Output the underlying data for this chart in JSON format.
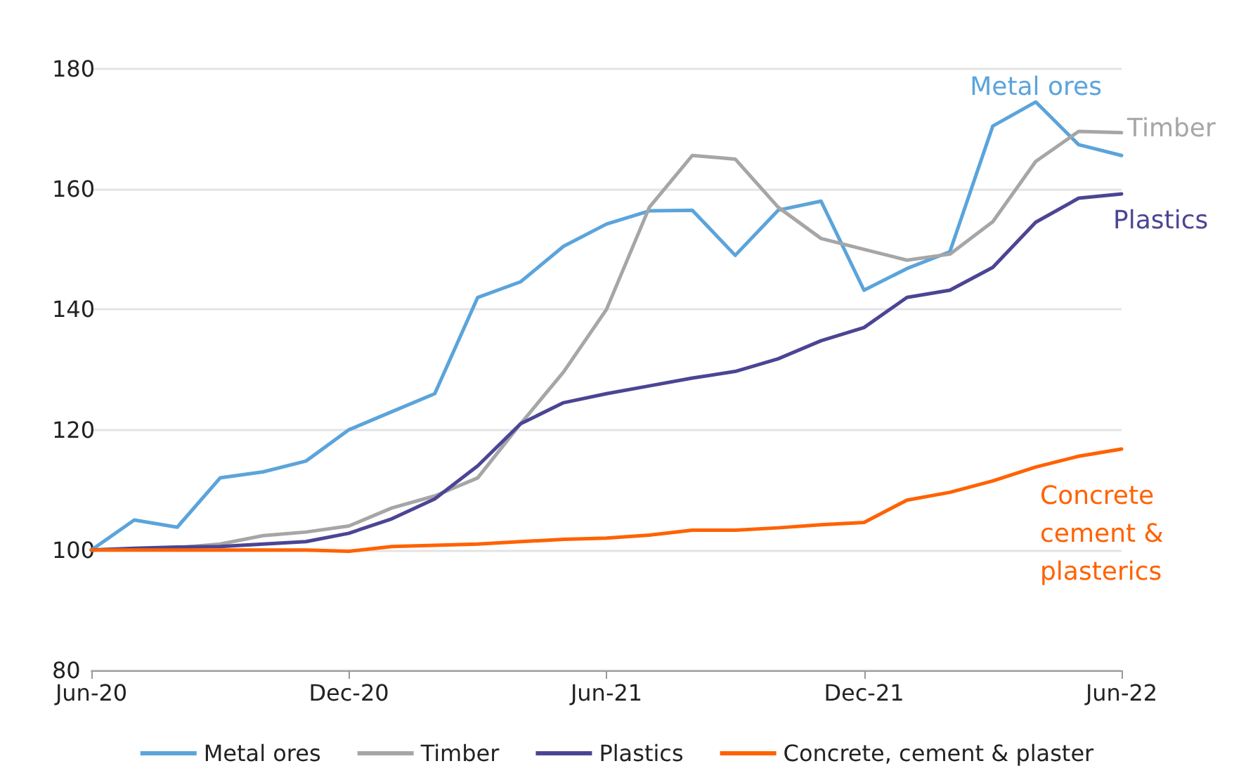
{
  "chart_data": {
    "type": "line",
    "categories": [
      "Jun-20",
      null,
      null,
      null,
      null,
      null,
      "Dec-20",
      null,
      null,
      null,
      null,
      null,
      "Jun-21",
      null,
      null,
      null,
      null,
      null,
      "Dec-21",
      null,
      null,
      null,
      null,
      null,
      "Jun-22"
    ],
    "series": [
      {
        "name": "Metal ores",
        "color": "#5ba4db",
        "values": [
          100,
          105,
          103.8,
          112,
          113,
          114.8,
          120,
          123,
          126,
          142,
          144.6,
          150.5,
          154.2,
          156.4,
          156.5,
          149,
          156.5,
          158,
          143.2,
          146.8,
          149.6,
          170.5,
          174.5,
          167.4,
          165.6
        ]
      },
      {
        "name": "Timber",
        "color": "#a6a6a6",
        "values": [
          100,
          100.2,
          100.4,
          101,
          102.4,
          103,
          104,
          107,
          109,
          112,
          121,
          129.6,
          140,
          157,
          165.6,
          165,
          157,
          151.8,
          150,
          148.2,
          149.2,
          154.6,
          164.6,
          169.6,
          169.4
        ]
      },
      {
        "name": "Plastics",
        "color": "#4b4594",
        "values": [
          100,
          100.3,
          100.5,
          100.6,
          101,
          101.4,
          102.8,
          105.2,
          108.5,
          114,
          121,
          124.5,
          126,
          127.3,
          128.6,
          129.7,
          131.8,
          134.8,
          137,
          142,
          143.2,
          147,
          154.5,
          158.5,
          159.2
        ]
      },
      {
        "name": "Concrete, cement & plaster",
        "color": "#ff6200",
        "values": [
          100,
          100,
          100,
          100,
          100,
          100,
          99.8,
          100.6,
          100.8,
          101,
          101.4,
          101.8,
          102,
          102.5,
          103.3,
          103.3,
          103.7,
          104.2,
          104.6,
          108.3,
          109.6,
          111.5,
          113.8,
          115.6,
          116.8
        ]
      }
    ],
    "annotations": [
      "Metal ores",
      "Timber",
      "Plastics",
      "Concrete\ncement &\nplasterics"
    ],
    "ylim": [
      80,
      180
    ],
    "yticks": [
      80,
      100,
      120,
      140,
      160,
      180
    ],
    "grid": "y",
    "legend": "bottom",
    "marker": "none",
    "line_style": "solid"
  }
}
